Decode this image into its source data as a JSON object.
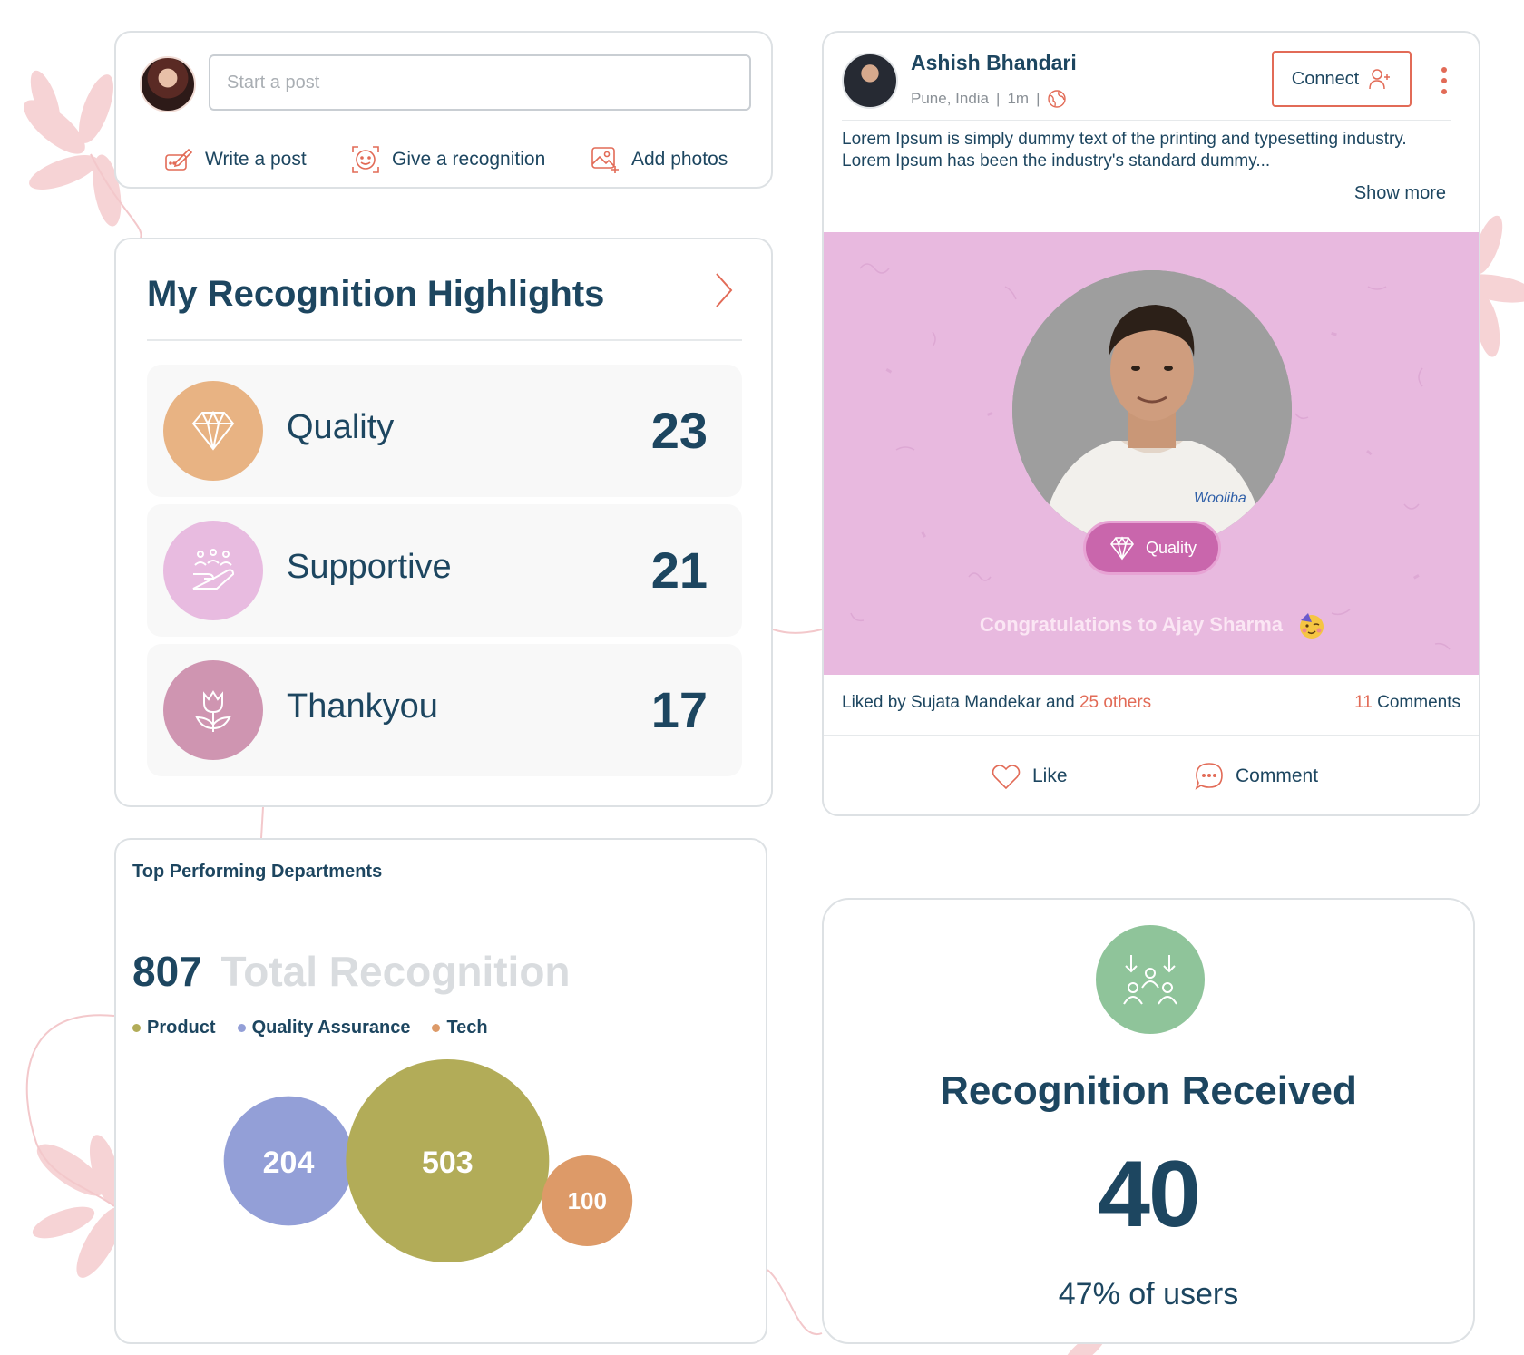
{
  "composer": {
    "placeholder": "Start a post",
    "actions": [
      {
        "label": "Write a post",
        "icon": "write-icon"
      },
      {
        "label": "Give a recognition",
        "icon": "recognition-icon"
      },
      {
        "label": "Add photos",
        "icon": "photo-icon"
      }
    ]
  },
  "highlights": {
    "title": "My Recognition Highlights",
    "items": [
      {
        "label": "Quality",
        "count": "23",
        "color": "#e8b383",
        "icon": "diamond-icon"
      },
      {
        "label": "Supportive",
        "count": "21",
        "color": "#e8bbe0",
        "icon": "helping-hand-icon"
      },
      {
        "label": "Thankyou",
        "count": "17",
        "color": "#cf95b1",
        "icon": "tulip-icon"
      }
    ]
  },
  "departments": {
    "title": "Top Performing Departments",
    "total": "807",
    "total_label": "Total Recognition",
    "legend": [
      {
        "name": "Product",
        "color": "#b2ac58"
      },
      {
        "name": "Quality Assurance",
        "color": "#939fd7"
      },
      {
        "name": "Tech",
        "color": "#dd9a68"
      }
    ]
  },
  "chart_data": {
    "type": "bubble",
    "series": [
      {
        "name": "Quality Assurance",
        "value": 204,
        "color": "#939fd7"
      },
      {
        "name": "Product",
        "value": 503,
        "color": "#b2ac58"
      },
      {
        "name": "Tech",
        "value": 100,
        "color": "#dd9a68"
      }
    ]
  },
  "feed_post": {
    "author": "Ashish Bhandari",
    "location": "Pune, India",
    "time": "1m",
    "connect_label": "Connect",
    "body": "Lorem Ipsum is simply dummy text of the printing and typesetting industry. Lorem Ipsum has been the industry's standard dummy...",
    "show_more": "Show more",
    "badge_label": "Quality",
    "shirt_text": "Wooliba",
    "congrats": "Congratulations to Ajay Sharma",
    "liked_by_prefix": "Liked by Sujata Mandekar and",
    "liked_by_others": "25 others",
    "comments_count": "11",
    "comments_label": "Comments",
    "like_label": "Like",
    "comment_label": "Comment",
    "banner_color": "#e8b9df",
    "accent_color": "#e26b57"
  },
  "received": {
    "title": "Recognition Received",
    "count": "40",
    "subtitle": "47% of users",
    "icon": "group-recognition-icon",
    "icon_color": "#8fc49a"
  }
}
